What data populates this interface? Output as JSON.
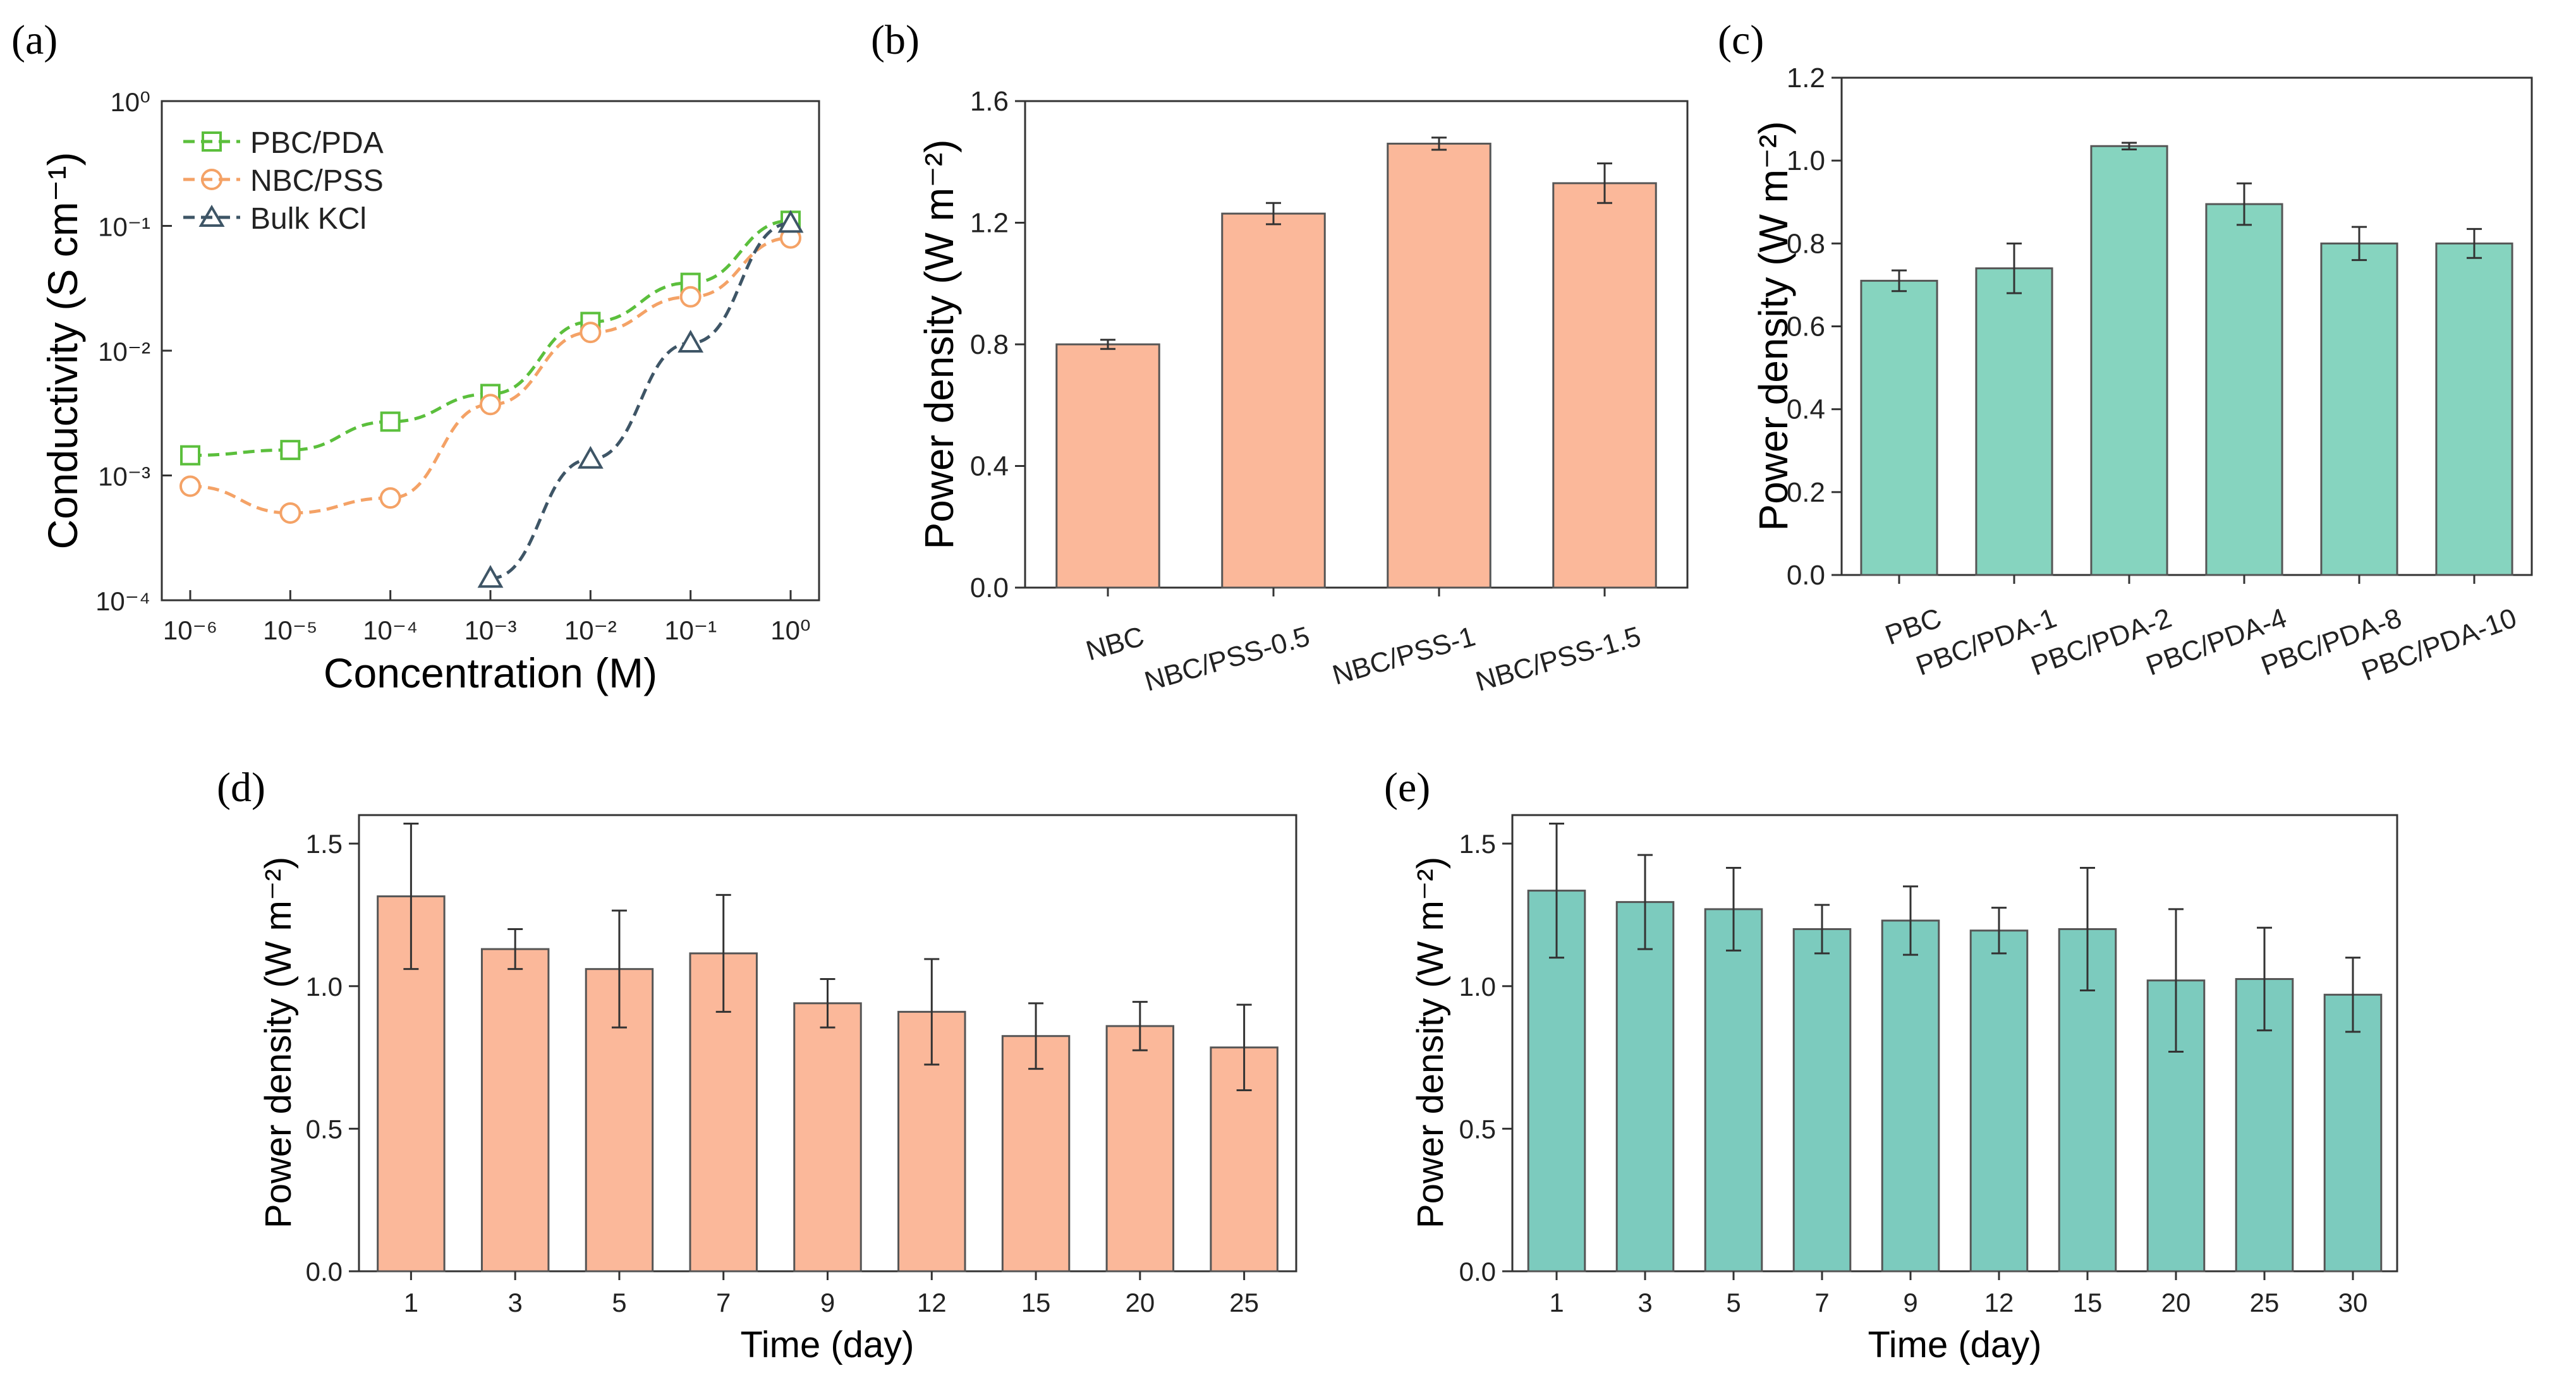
{
  "figure": {
    "panels": [
      {
        "id": "a",
        "label": "(a)"
      },
      {
        "id": "b",
        "label": "(b)"
      },
      {
        "id": "c",
        "label": "(c)"
      },
      {
        "id": "d",
        "label": "(d)"
      },
      {
        "id": "e",
        "label": "(e)"
      }
    ]
  },
  "colors": {
    "orange": "#FBB89A",
    "orange_line": "#F4A266",
    "teal": "#86D4BF",
    "teal_e": "#7CCBBE",
    "green_line": "#5BBF3C",
    "slate": "#3E5566"
  },
  "chart_data": [
    {
      "panel": "a",
      "type": "line",
      "xscale": "log",
      "yscale": "log",
      "xlabel": "Concentration (M)",
      "ylabel": "Conductivity (S cm⁻¹)",
      "xlim": [
        1e-06,
        1
      ],
      "ylim": [
        0.0001,
        1
      ],
      "xticks": [
        "10⁻⁶",
        "10⁻⁵",
        "10⁻⁴",
        "10⁻³",
        "10⁻²",
        "10⁻¹",
        "10⁰"
      ],
      "yticks": [
        "10⁻⁴",
        "10⁻³",
        "10⁻²",
        "10⁻¹",
        "10⁰"
      ],
      "legend_position": "top-left",
      "series": [
        {
          "name": "PBC/PDA",
          "marker": "square",
          "x": [
            1e-06,
            1e-05,
            0.0001,
            0.001,
            0.01,
            0.1,
            1
          ],
          "y": [
            0.00145,
            0.0016,
            0.0027,
            0.0045,
            0.017,
            0.035,
            0.11
          ]
        },
        {
          "name": "NBC/PSS",
          "marker": "circle",
          "x": [
            1e-06,
            1e-05,
            0.0001,
            0.001,
            0.01,
            0.1,
            1
          ],
          "y": [
            0.00082,
            0.0005,
            0.00066,
            0.0037,
            0.014,
            0.027,
            0.08
          ]
        },
        {
          "name": "Bulk KCl",
          "marker": "triangle",
          "x": [
            0.001,
            0.01,
            0.1,
            1
          ],
          "y": [
            0.00015,
            0.00135,
            0.0115,
            0.105
          ]
        }
      ]
    },
    {
      "panel": "b",
      "type": "bar",
      "ylabel": "Power density (W m⁻²)",
      "ylim": [
        0,
        1.6
      ],
      "yticks": [
        "0.0",
        "0.4",
        "0.8",
        "1.2",
        "1.6"
      ],
      "categories": [
        "NBC",
        "NBC/PSS-0.5",
        "NBC/PSS-1",
        "NBC/PSS-1.5"
      ],
      "values": [
        0.8,
        1.23,
        1.46,
        1.33
      ],
      "errors": [
        0.015,
        0.035,
        0.02,
        0.065
      ]
    },
    {
      "panel": "c",
      "type": "bar",
      "ylabel": "Power density (W m⁻²)",
      "ylim": [
        0,
        1.2
      ],
      "yticks": [
        "0.0",
        "0.2",
        "0.4",
        "0.6",
        "0.8",
        "1.0",
        "1.2"
      ],
      "categories": [
        "PBC",
        "PBC/PDA-1",
        "PBC/PDA-2",
        "PBC/PDA-4",
        "PBC/PDA-8",
        "PBC/PDA-10"
      ],
      "values": [
        0.71,
        0.74,
        1.035,
        0.895,
        0.8,
        0.8
      ],
      "errors": [
        0.025,
        0.06,
        0.008,
        0.05,
        0.04,
        0.035
      ]
    },
    {
      "panel": "d",
      "type": "bar",
      "xlabel": "Time (day)",
      "ylabel": "Power density (W m⁻²)",
      "ylim": [
        0,
        1.6
      ],
      "yticks": [
        "0.0",
        "0.5",
        "1.0",
        "1.5"
      ],
      "categories": [
        "1",
        "3",
        "5",
        "7",
        "9",
        "12",
        "15",
        "20",
        "25"
      ],
      "values": [
        1.315,
        1.13,
        1.06,
        1.115,
        0.94,
        0.91,
        0.825,
        0.86,
        0.785
      ],
      "errors": [
        0.255,
        0.07,
        0.205,
        0.205,
        0.085,
        0.185,
        0.115,
        0.085,
        0.15
      ]
    },
    {
      "panel": "e",
      "type": "bar",
      "xlabel": "Time (day)",
      "ylabel": "Power density (W m⁻²)",
      "ylim": [
        0,
        1.6
      ],
      "yticks": [
        "0.0",
        "0.5",
        "1.0",
        "1.5"
      ],
      "categories": [
        "1",
        "3",
        "5",
        "7",
        "9",
        "12",
        "15",
        "20",
        "25",
        "30"
      ],
      "values": [
        1.335,
        1.295,
        1.27,
        1.2,
        1.23,
        1.195,
        1.2,
        1.02,
        1.025,
        0.97
      ],
      "errors": [
        0.235,
        0.165,
        0.145,
        0.085,
        0.12,
        0.08,
        0.215,
        0.25,
        0.18,
        0.13
      ]
    }
  ]
}
